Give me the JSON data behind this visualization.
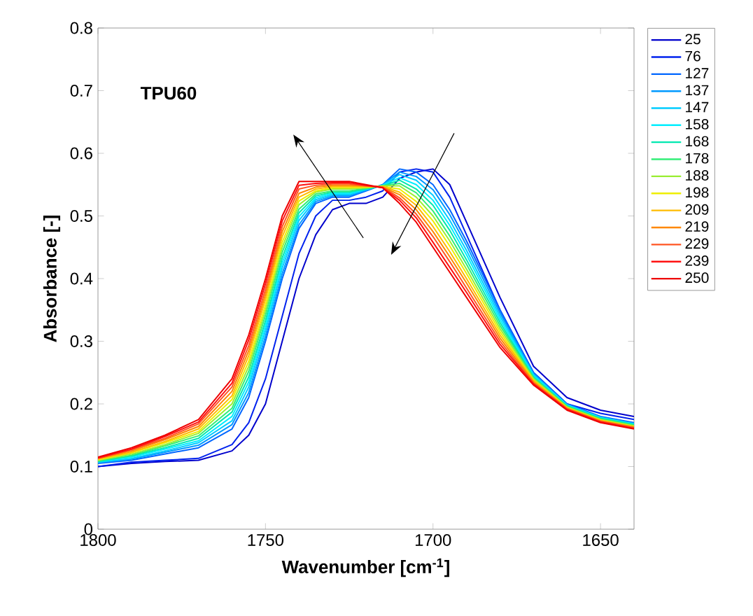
{
  "chart_data": {
    "type": "line",
    "xlabel": "Wavenumber [cm$^{-1}$]",
    "ylabel": "Absorbance [-]",
    "annotations": [
      "TPU60"
    ],
    "x": [
      1800,
      1790,
      1780,
      1770,
      1760,
      1755,
      1750,
      1745,
      1740,
      1735,
      1730,
      1725,
      1720,
      1715,
      1710,
      1705,
      1700,
      1695,
      1690,
      1680,
      1670,
      1660,
      1650,
      1640
    ],
    "xlim": [
      1800,
      1640
    ],
    "xticks": [
      1800,
      1750,
      1700,
      1650
    ],
    "ylim": [
      0,
      0.8
    ],
    "yticks": [
      0,
      0.1,
      0.2,
      0.3,
      0.4,
      0.5,
      0.6,
      0.7,
      0.8
    ],
    "legend": "right",
    "series": [
      {
        "name": "25",
        "color": "#0000cc",
        "values": [
          0.1,
          0.105,
          0.108,
          0.11,
          0.125,
          0.15,
          0.2,
          0.3,
          0.4,
          0.47,
          0.51,
          0.52,
          0.52,
          0.53,
          0.56,
          0.57,
          0.575,
          0.55,
          0.49,
          0.37,
          0.26,
          0.21,
          0.19,
          0.18
        ]
      },
      {
        "name": "76",
        "color": "#0022ee",
        "values": [
          0.1,
          0.107,
          0.11,
          0.113,
          0.135,
          0.17,
          0.24,
          0.34,
          0.44,
          0.5,
          0.525,
          0.525,
          0.53,
          0.54,
          0.57,
          0.575,
          0.57,
          0.53,
          0.47,
          0.35,
          0.25,
          0.2,
          0.185,
          0.175
        ]
      },
      {
        "name": "127",
        "color": "#0066ff",
        "values": [
          0.105,
          0.11,
          0.12,
          0.13,
          0.16,
          0.21,
          0.3,
          0.4,
          0.48,
          0.52,
          0.53,
          0.53,
          0.54,
          0.55,
          0.575,
          0.57,
          0.55,
          0.51,
          0.46,
          0.35,
          0.25,
          0.2,
          0.18,
          0.17
        ]
      },
      {
        "name": "137",
        "color": "#0099ff",
        "values": [
          0.106,
          0.112,
          0.123,
          0.134,
          0.167,
          0.218,
          0.308,
          0.408,
          0.486,
          0.523,
          0.532,
          0.532,
          0.541,
          0.55,
          0.57,
          0.563,
          0.542,
          0.502,
          0.453,
          0.345,
          0.248,
          0.199,
          0.179,
          0.169
        ]
      },
      {
        "name": "147",
        "color": "#00ccff",
        "values": [
          0.107,
          0.113,
          0.125,
          0.138,
          0.173,
          0.227,
          0.317,
          0.417,
          0.493,
          0.526,
          0.534,
          0.534,
          0.542,
          0.549,
          0.566,
          0.557,
          0.533,
          0.493,
          0.445,
          0.34,
          0.247,
          0.198,
          0.178,
          0.168
        ]
      },
      {
        "name": "158",
        "color": "#00eeff",
        "values": [
          0.108,
          0.115,
          0.128,
          0.141,
          0.18,
          0.235,
          0.325,
          0.425,
          0.499,
          0.529,
          0.536,
          0.536,
          0.543,
          0.549,
          0.561,
          0.55,
          0.525,
          0.485,
          0.438,
          0.335,
          0.245,
          0.198,
          0.178,
          0.168
        ]
      },
      {
        "name": "168",
        "color": "#00e8b0",
        "values": [
          0.108,
          0.117,
          0.13,
          0.145,
          0.187,
          0.243,
          0.333,
          0.433,
          0.505,
          0.532,
          0.538,
          0.538,
          0.543,
          0.548,
          0.557,
          0.543,
          0.517,
          0.477,
          0.43,
          0.33,
          0.243,
          0.197,
          0.177,
          0.167
        ]
      },
      {
        "name": "178",
        "color": "#33ee77",
        "values": [
          0.109,
          0.118,
          0.133,
          0.149,
          0.193,
          0.252,
          0.342,
          0.442,
          0.511,
          0.535,
          0.54,
          0.54,
          0.544,
          0.548,
          0.552,
          0.537,
          0.508,
          0.468,
          0.423,
          0.325,
          0.242,
          0.196,
          0.176,
          0.166
        ]
      },
      {
        "name": "188",
        "color": "#99ee33",
        "values": [
          0.11,
          0.12,
          0.135,
          0.153,
          0.2,
          0.26,
          0.35,
          0.45,
          0.518,
          0.538,
          0.543,
          0.543,
          0.545,
          0.548,
          0.548,
          0.53,
          0.5,
          0.46,
          0.415,
          0.32,
          0.24,
          0.195,
          0.175,
          0.165
        ]
      },
      {
        "name": "198",
        "color": "#eeee00",
        "values": [
          0.111,
          0.122,
          0.138,
          0.156,
          0.207,
          0.268,
          0.358,
          0.458,
          0.524,
          0.54,
          0.545,
          0.545,
          0.546,
          0.547,
          0.543,
          0.523,
          0.492,
          0.452,
          0.408,
          0.315,
          0.238,
          0.194,
          0.174,
          0.164
        ]
      },
      {
        "name": "209",
        "color": "#ffbb00",
        "values": [
          0.112,
          0.123,
          0.14,
          0.16,
          0.213,
          0.277,
          0.367,
          0.467,
          0.53,
          0.543,
          0.547,
          0.547,
          0.547,
          0.547,
          0.538,
          0.517,
          0.483,
          0.443,
          0.4,
          0.31,
          0.237,
          0.193,
          0.173,
          0.163
        ]
      },
      {
        "name": "219",
        "color": "#ff8800",
        "values": [
          0.113,
          0.125,
          0.143,
          0.164,
          0.22,
          0.285,
          0.375,
          0.475,
          0.536,
          0.546,
          0.549,
          0.549,
          0.548,
          0.546,
          0.534,
          0.51,
          0.475,
          0.435,
          0.393,
          0.305,
          0.235,
          0.193,
          0.173,
          0.163
        ]
      },
      {
        "name": "229",
        "color": "#ff5522",
        "values": [
          0.113,
          0.127,
          0.145,
          0.168,
          0.227,
          0.293,
          0.383,
          0.483,
          0.543,
          0.549,
          0.551,
          0.551,
          0.548,
          0.546,
          0.529,
          0.503,
          0.467,
          0.427,
          0.385,
          0.3,
          0.233,
          0.192,
          0.172,
          0.162
        ]
      },
      {
        "name": "239",
        "color": "#ff1111",
        "values": [
          0.114,
          0.128,
          0.148,
          0.171,
          0.233,
          0.302,
          0.392,
          0.492,
          0.549,
          0.552,
          0.553,
          0.553,
          0.549,
          0.545,
          0.525,
          0.497,
          0.458,
          0.418,
          0.378,
          0.295,
          0.232,
          0.191,
          0.171,
          0.161
        ]
      },
      {
        "name": "250",
        "color": "#ee0000",
        "values": [
          0.115,
          0.13,
          0.15,
          0.175,
          0.24,
          0.31,
          0.4,
          0.5,
          0.555,
          0.555,
          0.555,
          0.555,
          0.55,
          0.545,
          0.52,
          0.49,
          0.45,
          0.41,
          0.37,
          0.29,
          0.23,
          0.19,
          0.17,
          0.16
        ]
      }
    ]
  }
}
